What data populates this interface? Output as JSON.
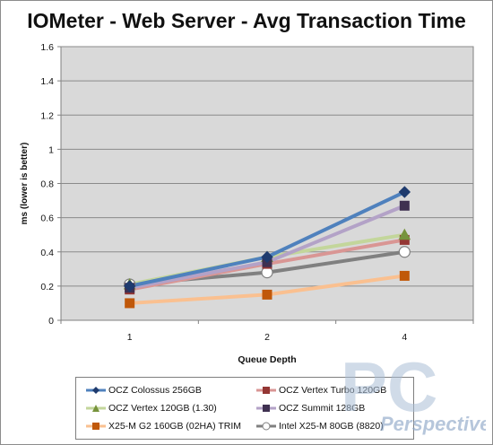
{
  "chart_data": {
    "type": "line",
    "title": "IOMeter - Web Server - Avg Transaction Time",
    "xlabel": "Queue Depth",
    "ylabel": "ms (lower is better)",
    "categories": [
      "1",
      "2",
      "4"
    ],
    "ylim": [
      0,
      1.6
    ],
    "yticks": [
      "0",
      "0.2",
      "0.4",
      "0.6",
      "0.8",
      "1",
      "1.2",
      "1.4",
      "1.6"
    ],
    "grid": true,
    "legend_position": "bottom",
    "series": [
      {
        "name": "OCZ Colossus 256GB",
        "values": [
          0.2,
          0.37,
          0.75
        ],
        "line_color": "#4f81bd",
        "marker": "diamond",
        "marker_color": "#1f3b6e"
      },
      {
        "name": "OCZ Vertex Turbo 120GB",
        "values": [
          0.18,
          0.33,
          0.47
        ],
        "line_color": "#d99694",
        "marker": "square",
        "marker_color": "#943634"
      },
      {
        "name": "OCZ Vertex 120GB (1.30)",
        "values": [
          0.21,
          0.37,
          0.5
        ],
        "line_color": "#c3d69b",
        "marker": "triangle",
        "marker_color": "#77933c"
      },
      {
        "name": "OCZ Summit 128GB",
        "values": [
          0.19,
          0.34,
          0.67
        ],
        "line_color": "#b3a2c7",
        "marker": "square",
        "marker_color": "#3f3151"
      },
      {
        "name": "X25-M G2 160GB (02HA) TRIM",
        "values": [
          0.1,
          0.15,
          0.26
        ],
        "line_color": "#fac090",
        "marker": "square",
        "marker_color": "#c0580a"
      },
      {
        "name": "Intel X25-M 80GB (8820)",
        "values": [
          0.21,
          0.28,
          0.4
        ],
        "line_color": "#808080",
        "marker": "circle",
        "marker_color": "#ffffff"
      }
    ]
  },
  "watermark": {
    "main": "PC",
    "sub": "Perspective",
    "color": "#8fa8c8"
  }
}
